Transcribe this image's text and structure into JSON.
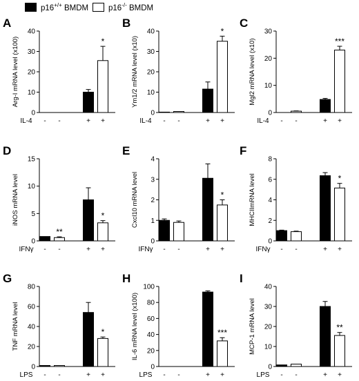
{
  "legend": [
    {
      "base": "p16",
      "sup": "+/+",
      "suffix": " BMDM",
      "color": "#000000"
    },
    {
      "base": "p16",
      "sup": "-/-",
      "suffix": " BMDM",
      "color": "#ffffff"
    }
  ],
  "chart_data": [
    {
      "type": "bar",
      "panel": "A",
      "ylabel": "Arg-I mRNA level (x100)",
      "ylim": [
        0,
        40
      ],
      "yticks": [
        0,
        10,
        20,
        30,
        40
      ],
      "treatment": "IL-4",
      "conditions": [
        "-",
        "-",
        "+",
        "+"
      ],
      "series": [
        {
          "name": "p16+/+ BMDM",
          "values": [
            0,
            10
          ]
        },
        {
          "name": "p16-/- BMDM",
          "values": [
            0,
            25.5
          ]
        }
      ],
      "errors": [
        [
          0,
          1.3
        ],
        [
          0,
          7
        ]
      ],
      "significance": [
        "",
        "*"
      ]
    },
    {
      "type": "bar",
      "panel": "B",
      "ylabel": "Ym1/2 mRNA level (x10)",
      "ylim": [
        0,
        40
      ],
      "yticks": [
        0,
        10,
        20,
        30,
        40
      ],
      "treatment": "IL-4",
      "conditions": [
        "-",
        "-",
        "+",
        "+"
      ],
      "series": [
        {
          "name": "p16+/+ BMDM",
          "values": [
            0.2,
            11.5
          ]
        },
        {
          "name": "p16-/- BMDM",
          "values": [
            0.5,
            35
          ]
        }
      ],
      "errors": [
        [
          0,
          3.5
        ],
        [
          0,
          2.5
        ]
      ],
      "significance": [
        "",
        "*"
      ]
    },
    {
      "type": "bar",
      "panel": "C",
      "ylabel": "Mgl2 mRNA level (x10)",
      "ylim": [
        0,
        30
      ],
      "yticks": [
        0,
        10,
        20,
        30
      ],
      "treatment": "IL-4",
      "conditions": [
        "-",
        "-",
        "+",
        "+"
      ],
      "series": [
        {
          "name": "p16+/+ BMDM",
          "values": [
            0,
            4.8
          ]
        },
        {
          "name": "p16-/- BMDM",
          "values": [
            0.5,
            23
          ]
        }
      ],
      "errors": [
        [
          0,
          0.4
        ],
        [
          0.1,
          1.4
        ]
      ],
      "significance": [
        "",
        "***"
      ]
    },
    {
      "type": "bar",
      "panel": "D",
      "ylabel": "iNOS mRNA level",
      "ylim": [
        0,
        15
      ],
      "yticks": [
        0,
        5,
        10,
        15
      ],
      "treatment": "IFNγ",
      "conditions": [
        "-",
        "-",
        "+",
        "+"
      ],
      "series": [
        {
          "name": "p16+/+ BMDM",
          "values": [
            0.8,
            7.5
          ]
        },
        {
          "name": "p16-/- BMDM",
          "values": [
            0.6,
            3.3
          ]
        }
      ],
      "errors": [
        [
          0,
          2.2
        ],
        [
          0.15,
          0.4
        ]
      ],
      "significance": [
        "**",
        "*"
      ]
    },
    {
      "type": "bar",
      "panel": "E",
      "ylabel": "Cxcl10 mRNA level",
      "ylim": [
        0,
        4
      ],
      "yticks": [
        0,
        1,
        2,
        3,
        4
      ],
      "treatment": "IFNγ",
      "conditions": [
        "-",
        "-",
        "+",
        "+"
      ],
      "series": [
        {
          "name": "p16+/+ BMDM",
          "values": [
            1.0,
            3.05
          ]
        },
        {
          "name": "p16-/- BMDM",
          "values": [
            0.9,
            1.75
          ]
        }
      ],
      "errors": [
        [
          0.07,
          0.7
        ],
        [
          0.07,
          0.25
        ]
      ],
      "significance": [
        "",
        "*"
      ]
    },
    {
      "type": "bar",
      "panel": "F",
      "ylabel": "MHCIImRNA level",
      "ylim": [
        0,
        8
      ],
      "yticks": [
        0,
        2,
        4,
        6,
        8
      ],
      "treatment": "IFNγ",
      "conditions": [
        "-",
        "-",
        "+",
        "+"
      ],
      "series": [
        {
          "name": "p16+/+ BMDM",
          "values": [
            1.0,
            6.35
          ]
        },
        {
          "name": "p16-/- BMDM",
          "values": [
            0.9,
            5.15
          ]
        }
      ],
      "errors": [
        [
          0.05,
          0.3
        ],
        [
          0.05,
          0.45
        ]
      ],
      "significance": [
        "",
        "*"
      ]
    },
    {
      "type": "bar",
      "panel": "G",
      "ylabel": "TNF mRNA level",
      "ylim": [
        0,
        80
      ],
      "yticks": [
        0,
        20,
        40,
        60,
        80
      ],
      "treatment": "LPS",
      "conditions": [
        "-",
        "-",
        "+",
        "+"
      ],
      "series": [
        {
          "name": "p16+/+ BMDM",
          "values": [
            1,
            54
          ]
        },
        {
          "name": "p16-/- BMDM",
          "values": [
            1,
            28
          ]
        }
      ],
      "errors": [
        [
          0,
          10
        ],
        [
          0,
          1.5
        ]
      ],
      "significance": [
        "",
        "*"
      ]
    },
    {
      "type": "bar",
      "panel": "H",
      "ylabel": "IL-6 mRNA level (x100)",
      "ylim": [
        0,
        100
      ],
      "yticks": [
        0,
        20,
        40,
        60,
        80,
        100
      ],
      "treatment": "LPS",
      "conditions": [
        "-",
        "-",
        "+",
        "+"
      ],
      "series": [
        {
          "name": "p16+/+ BMDM",
          "values": [
            0,
            93
          ]
        },
        {
          "name": "p16-/- BMDM",
          "values": [
            0,
            32
          ]
        }
      ],
      "errors": [
        [
          0,
          1.5
        ],
        [
          0,
          4
        ]
      ],
      "significance": [
        "",
        "***"
      ]
    },
    {
      "type": "bar",
      "panel": "I",
      "ylabel": "MCP-1 mRNA level",
      "ylim": [
        0,
        40
      ],
      "yticks": [
        0,
        10,
        20,
        30,
        40
      ],
      "treatment": "LPS",
      "conditions": [
        "-",
        "-",
        "+",
        "+"
      ],
      "series": [
        {
          "name": "p16+/+ BMDM",
          "values": [
            0.8,
            30
          ]
        },
        {
          "name": "p16-/- BMDM",
          "values": [
            1.2,
            15.5
          ]
        }
      ],
      "errors": [
        [
          0,
          2.5
        ],
        [
          0,
          1.5
        ]
      ],
      "significance": [
        "",
        "**"
      ]
    }
  ]
}
